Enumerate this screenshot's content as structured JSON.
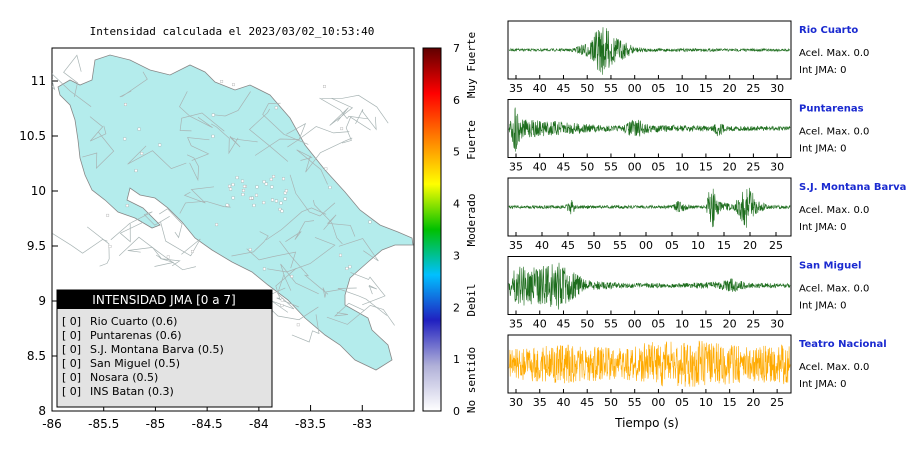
{
  "map": {
    "title": "Intensidad calculada el 2023/03/02_10:53:40",
    "x_ticks": [
      "-86",
      "-85.5",
      "-85",
      "-84.5",
      "-84",
      "-83.5",
      "-83"
    ],
    "y_ticks": [
      "11",
      "10.5",
      "10",
      "9.5",
      "9",
      "8.5",
      "8"
    ],
    "xlim": [
      -86,
      -83.5
    ],
    "ylim": [
      8,
      11.3
    ],
    "land_color": "#b4ecec"
  },
  "legend": {
    "title": "INTENSIDAD JMA [0 a 7]",
    "entries": [
      {
        "marker": "[ 0]",
        "label": "Rio Cuarto (0.6)"
      },
      {
        "marker": "[ 0]",
        "label": "Puntarenas (0.6)"
      },
      {
        "marker": "[ 0]",
        "label": "S.J. Montana Barva (0.5)"
      },
      {
        "marker": "[ 0]",
        "label": "San Miguel (0.5)"
      },
      {
        "marker": "[ 0]",
        "label": "Nosara (0.5)"
      },
      {
        "marker": "[ 0]",
        "label": "INS Batan (0.3)"
      }
    ]
  },
  "colorbar": {
    "ticks": [
      "0",
      "1",
      "2",
      "3",
      "4",
      "5",
      "6",
      "7"
    ],
    "range": [
      0,
      7
    ],
    "labels": [
      "No sentido",
      "Debil",
      "Moderado",
      "Fuerte",
      "Muy Fuerte"
    ],
    "stops": [
      "#ffffff",
      "#b0b0d8",
      "#2020c0",
      "#00c0ff",
      "#00c000",
      "#ffff00",
      "#ff8000",
      "#ff0000",
      "#600000"
    ]
  },
  "chart_data": [
    {
      "type": "line",
      "name": "Rio Cuarto",
      "station": "Rio Cuarto",
      "accel": "Acel. Max. 0.0",
      "int": "Int JMA: 0",
      "color": "#1e6e1e",
      "x_ticks": [
        "35",
        "40",
        "45",
        "50",
        "55",
        "00",
        "05",
        "10",
        "15",
        "20",
        "25",
        "30"
      ],
      "envelope": [
        [
          0,
          0.05
        ],
        [
          0.22,
          0.05
        ],
        [
          0.28,
          0.3
        ],
        [
          0.33,
          1.0
        ],
        [
          0.38,
          0.5
        ],
        [
          0.45,
          0.12
        ],
        [
          0.5,
          0.06
        ],
        [
          1,
          0.05
        ]
      ]
    },
    {
      "type": "line",
      "name": "Puntarenas",
      "station": "Puntarenas",
      "accel": "Acel. Max. 0.0",
      "int": "Int JMA: 0",
      "color": "#1e6e1e",
      "x_ticks": [
        "35",
        "40",
        "45",
        "50",
        "55",
        "00",
        "05",
        "10",
        "15",
        "20",
        "25",
        "30"
      ],
      "envelope": [
        [
          0,
          0.1
        ],
        [
          0.02,
          1.0
        ],
        [
          0.05,
          0.35
        ],
        [
          0.15,
          0.3
        ],
        [
          0.3,
          0.15
        ],
        [
          0.4,
          0.1
        ],
        [
          0.45,
          0.4
        ],
        [
          0.5,
          0.15
        ],
        [
          0.72,
          0.1
        ],
        [
          0.74,
          0.35
        ],
        [
          0.77,
          0.1
        ],
        [
          1,
          0.08
        ]
      ]
    },
    {
      "type": "line",
      "name": "S.J. Montana Barva",
      "station": "S.J. Montana Barva",
      "accel": "Acel. Max. 0.0",
      "int": "Int JMA: 0",
      "color": "#1e6e1e",
      "x_ticks": [
        "35",
        "40",
        "45",
        "50",
        "55",
        "00",
        "05",
        "10",
        "15",
        "20",
        "25"
      ],
      "envelope": [
        [
          0,
          0.06
        ],
        [
          0.2,
          0.06
        ],
        [
          0.22,
          0.3
        ],
        [
          0.25,
          0.06
        ],
        [
          0.58,
          0.06
        ],
        [
          0.6,
          0.25
        ],
        [
          0.65,
          0.06
        ],
        [
          0.7,
          0.06
        ],
        [
          0.72,
          1.0
        ],
        [
          0.75,
          0.2
        ],
        [
          0.8,
          0.1
        ],
        [
          0.85,
          0.9
        ],
        [
          0.88,
          0.3
        ],
        [
          0.92,
          0.08
        ],
        [
          1,
          0.06
        ]
      ]
    },
    {
      "type": "line",
      "name": "San Miguel",
      "station": "San Miguel",
      "accel": "Acel. Max. 0.0",
      "int": "Int JMA: 0",
      "color": "#1e6e1e",
      "x_ticks": [
        "35",
        "40",
        "45",
        "50",
        "55",
        "00",
        "05",
        "10",
        "15",
        "20",
        "25",
        "30"
      ],
      "envelope": [
        [
          0,
          0.5
        ],
        [
          0.05,
          0.8
        ],
        [
          0.1,
          0.7
        ],
        [
          0.18,
          1.0
        ],
        [
          0.22,
          0.6
        ],
        [
          0.28,
          0.2
        ],
        [
          0.4,
          0.1
        ],
        [
          0.6,
          0.08
        ],
        [
          0.75,
          0.15
        ],
        [
          0.8,
          0.3
        ],
        [
          0.85,
          0.1
        ],
        [
          1,
          0.08
        ]
      ]
    },
    {
      "type": "line",
      "name": "Teatro Nacional",
      "station": "Teatro Nacional",
      "accel": "Acel. Max. 0.0",
      "int": "Int JMA: 0",
      "color": "#ffaa00",
      "x_ticks": [
        "30",
        "35",
        "40",
        "45",
        "50",
        "55",
        "00",
        "05",
        "10",
        "15",
        "20",
        "25"
      ],
      "xlabel": "Tiempo (s)",
      "envelope": [
        [
          0,
          0.6
        ],
        [
          0.2,
          0.75
        ],
        [
          0.4,
          0.6
        ],
        [
          0.5,
          0.85
        ],
        [
          0.7,
          0.9
        ],
        [
          0.85,
          0.7
        ],
        [
          1,
          0.8
        ]
      ]
    }
  ]
}
